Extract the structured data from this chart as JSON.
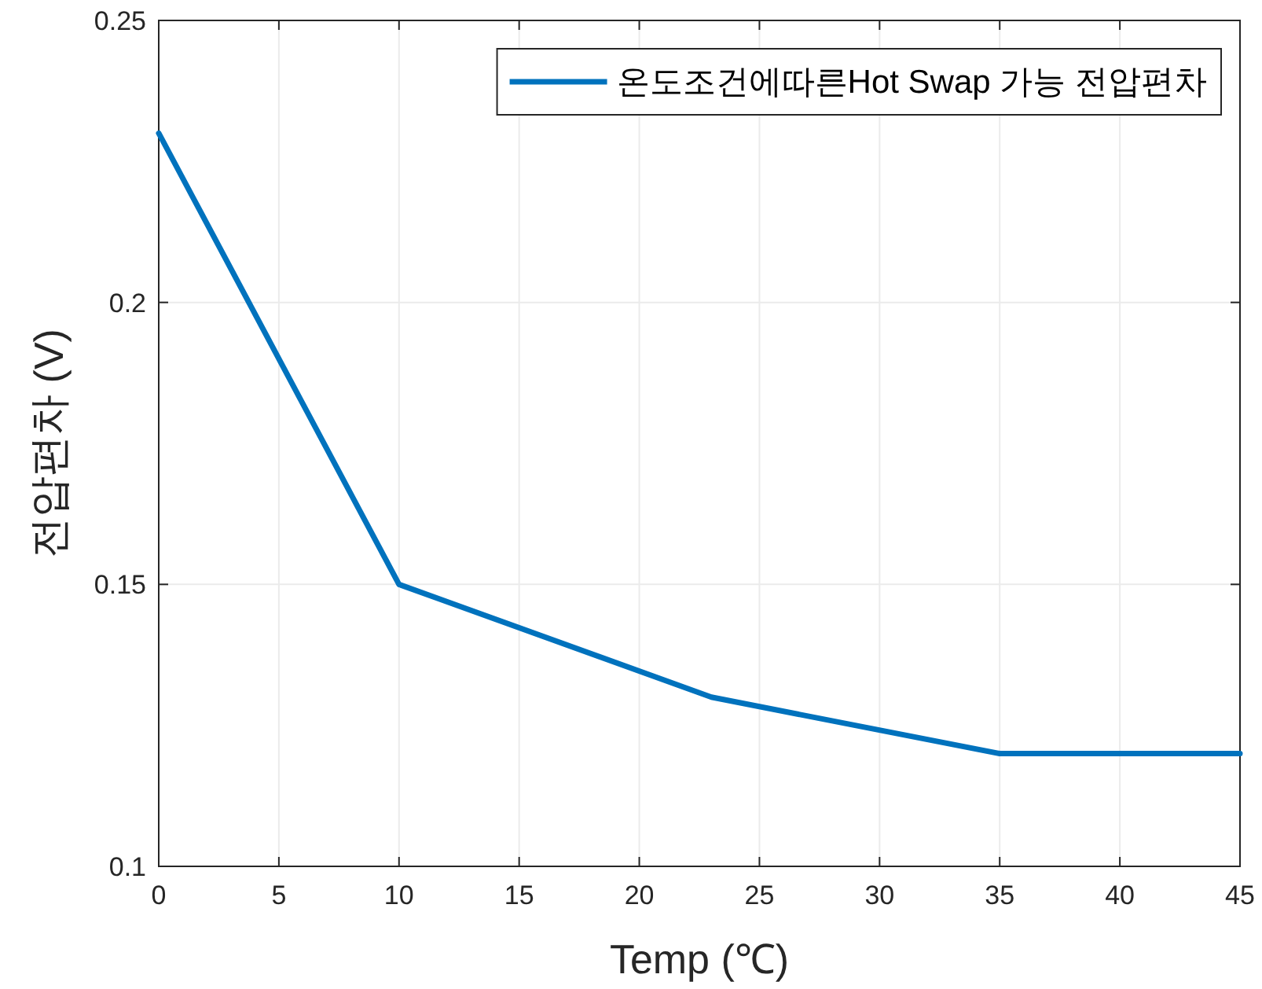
{
  "chart_data": {
    "type": "line",
    "xlabel": "Temp (℃)",
    "ylabel": "전압편차 (V)",
    "x": [
      0,
      10,
      23,
      35,
      45
    ],
    "series": [
      {
        "name": "온도조건에따른Hot Swap 가능 전압편차",
        "color": "#0072bd",
        "values": [
          0.23,
          0.15,
          0.13,
          0.12,
          0.12
        ]
      }
    ],
    "xlim": [
      0,
      45
    ],
    "xticks": [
      0,
      5,
      10,
      15,
      20,
      25,
      30,
      35,
      40,
      45
    ],
    "ylim": [
      0.1,
      0.25
    ],
    "yticks": [
      0.1,
      0.15,
      0.2,
      0.25
    ],
    "grid": true,
    "legend": "top right"
  }
}
